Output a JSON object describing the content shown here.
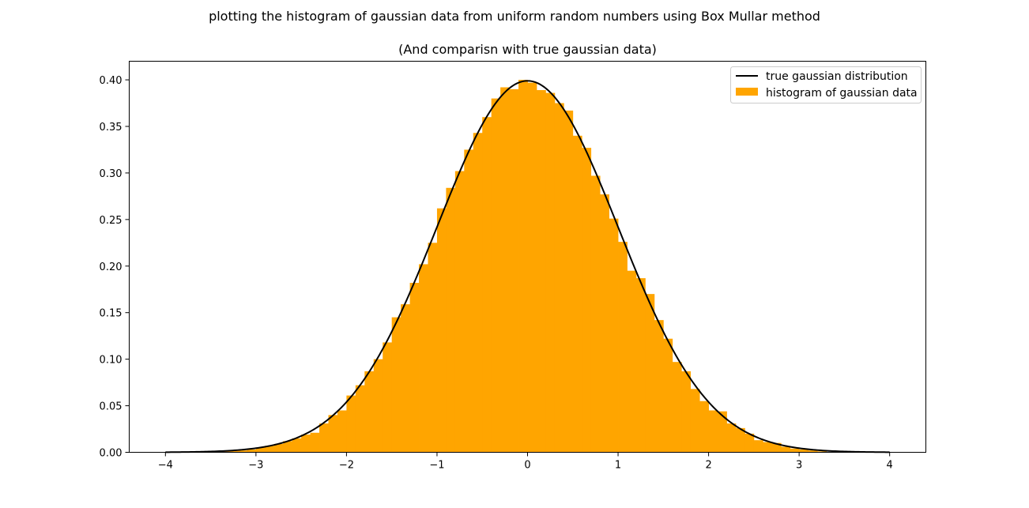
{
  "figure": {
    "suptitle": "plotting the histogram of gaussian data from uniform random numbers using Box Mullar method",
    "title": "(And comparisn with true gaussian data)"
  },
  "chart_data": {
    "type": "bar",
    "title": "(And comparisn with true gaussian data)",
    "xlabel": "",
    "ylabel": "",
    "xlim": [
      -4.4,
      4.4
    ],
    "ylim": [
      0,
      0.42
    ],
    "grid": false,
    "legend_position": "top-right",
    "xticks": [
      -4,
      -3,
      -2,
      -1,
      0,
      1,
      2,
      3,
      4
    ],
    "xtick_labels": [
      "−4",
      "−3",
      "−2",
      "−1",
      "0",
      "1",
      "2",
      "3",
      "4"
    ],
    "yticks": [
      0.0,
      0.05,
      0.1,
      0.15,
      0.2,
      0.25,
      0.3,
      0.35,
      0.4
    ],
    "ytick_labels": [
      "0.00",
      "0.05",
      "0.10",
      "0.15",
      "0.20",
      "0.25",
      "0.30",
      "0.35",
      "0.40"
    ],
    "series": [
      {
        "name": "true gaussian distribution",
        "kind": "line",
        "color": "#000000",
        "function": "standard normal pdf",
        "x_range": [
          -4,
          4
        ]
      },
      {
        "name": "histogram of gaussian data",
        "kind": "histogram",
        "color": "#ffa500",
        "bin_width": 0.1,
        "bins": [
          [
            -3.4,
            0.001
          ],
          [
            -3.3,
            0.002
          ],
          [
            -3.2,
            0.002
          ],
          [
            -3.1,
            0.003
          ],
          [
            -3.0,
            0.005
          ],
          [
            -2.9,
            0.007
          ],
          [
            -2.8,
            0.009
          ],
          [
            -2.7,
            0.012
          ],
          [
            -2.6,
            0.015
          ],
          [
            -2.5,
            0.019
          ],
          [
            -2.4,
            0.021
          ],
          [
            -2.3,
            0.031
          ],
          [
            -2.2,
            0.04
          ],
          [
            -2.1,
            0.045
          ],
          [
            -2.0,
            0.061
          ],
          [
            -1.9,
            0.072
          ],
          [
            -1.8,
            0.087
          ],
          [
            -1.7,
            0.1
          ],
          [
            -1.6,
            0.118
          ],
          [
            -1.5,
            0.145
          ],
          [
            -1.4,
            0.159
          ],
          [
            -1.3,
            0.182
          ],
          [
            -1.2,
            0.202
          ],
          [
            -1.1,
            0.225
          ],
          [
            -1.0,
            0.262
          ],
          [
            -0.9,
            0.284
          ],
          [
            -0.8,
            0.302
          ],
          [
            -0.7,
            0.325
          ],
          [
            -0.6,
            0.343
          ],
          [
            -0.5,
            0.36
          ],
          [
            -0.4,
            0.38
          ],
          [
            -0.3,
            0.392
          ],
          [
            -0.2,
            0.39
          ],
          [
            -0.1,
            0.4
          ],
          [
            0.0,
            0.397
          ],
          [
            0.1,
            0.389
          ],
          [
            0.2,
            0.386
          ],
          [
            0.3,
            0.375
          ],
          [
            0.4,
            0.367
          ],
          [
            0.5,
            0.34
          ],
          [
            0.6,
            0.327
          ],
          [
            0.7,
            0.297
          ],
          [
            0.8,
            0.277
          ],
          [
            0.9,
            0.251
          ],
          [
            1.0,
            0.226
          ],
          [
            1.1,
            0.195
          ],
          [
            1.2,
            0.187
          ],
          [
            1.3,
            0.17
          ],
          [
            1.4,
            0.142
          ],
          [
            1.5,
            0.122
          ],
          [
            1.6,
            0.097
          ],
          [
            1.7,
            0.087
          ],
          [
            1.8,
            0.068
          ],
          [
            1.9,
            0.055
          ],
          [
            2.0,
            0.045
          ],
          [
            2.1,
            0.044
          ],
          [
            2.2,
            0.031
          ],
          [
            2.3,
            0.026
          ],
          [
            2.4,
            0.02
          ],
          [
            2.5,
            0.013
          ],
          [
            2.6,
            0.011
          ],
          [
            2.7,
            0.01
          ],
          [
            2.8,
            0.006
          ],
          [
            2.9,
            0.004
          ],
          [
            3.0,
            0.003
          ],
          [
            3.1,
            0.002
          ],
          [
            3.2,
            0.001
          ]
        ]
      }
    ]
  }
}
